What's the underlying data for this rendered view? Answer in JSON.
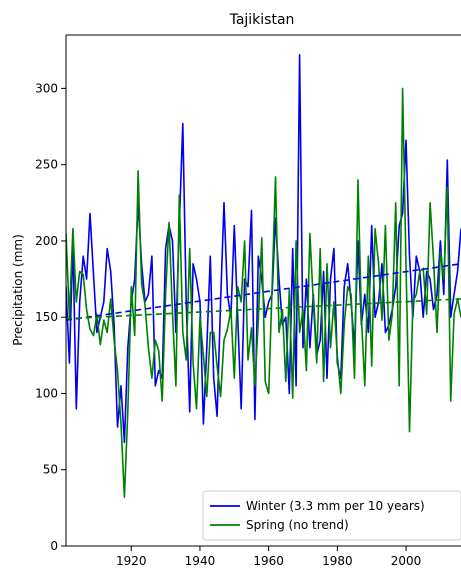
{
  "chart_data": {
    "type": "line",
    "title": "Tajikistan",
    "xlabel": "",
    "ylabel": "Precipitation (mm)",
    "xlim": [
      1901,
      2016
    ],
    "ylim": [
      0,
      335
    ],
    "x_ticks": [
      1920,
      1940,
      1960,
      1980,
      2000
    ],
    "y_ticks": [
      0,
      50,
      100,
      150,
      200,
      250,
      300
    ],
    "grid": false,
    "legend_position": "lower right",
    "years": [
      1901,
      1902,
      1903,
      1904,
      1905,
      1906,
      1907,
      1908,
      1909,
      1910,
      1911,
      1912,
      1913,
      1914,
      1915,
      1916,
      1917,
      1918,
      1919,
      1920,
      1921,
      1922,
      1923,
      1924,
      1925,
      1926,
      1927,
      1928,
      1929,
      1930,
      1931,
      1932,
      1933,
      1934,
      1935,
      1936,
      1937,
      1938,
      1939,
      1940,
      1941,
      1942,
      1943,
      1944,
      1945,
      1946,
      1947,
      1948,
      1949,
      1950,
      1951,
      1952,
      1953,
      1954,
      1955,
      1956,
      1957,
      1958,
      1959,
      1960,
      1961,
      1962,
      1963,
      1964,
      1965,
      1966,
      1967,
      1968,
      1969,
      1970,
      1971,
      1972,
      1973,
      1974,
      1975,
      1976,
      1977,
      1978,
      1979,
      1980,
      1981,
      1982,
      1983,
      1984,
      1985,
      1986,
      1987,
      1988,
      1989,
      1990,
      1991,
      1992,
      1993,
      1994,
      1995,
      1996,
      1997,
      1998,
      1999,
      2000,
      2001,
      2002,
      2003,
      2004,
      2005,
      2006,
      2007,
      2008,
      2009,
      2010,
      2011,
      2012,
      2013,
      2014,
      2015,
      2016
    ],
    "series": [
      {
        "name": "Winter (3.3 mm per 10 years)",
        "color": "#0000ee",
        "style": "solid",
        "values": [
          170,
          120,
          200,
          90,
          160,
          190,
          175,
          218,
          178,
          140,
          150,
          160,
          195,
          180,
          145,
          78,
          105,
          68,
          130,
          160,
          175,
          225,
          185,
          160,
          165,
          190,
          105,
          115,
          110,
          195,
          210,
          200,
          140,
          210,
          277,
          160,
          88,
          185,
          175,
          160,
          80,
          130,
          190,
          110,
          85,
          160,
          225,
          165,
          150,
          210,
          150,
          90,
          175,
          170,
          220,
          83,
          190,
          175,
          150,
          160,
          165,
          215,
          175,
          145,
          150,
          100,
          195,
          105,
          322,
          130,
          175,
          130,
          165,
          125,
          135,
          180,
          110,
          175,
          195,
          120,
          110,
          170,
          185,
          160,
          130,
          200,
          145,
          165,
          140,
          210,
          150,
          160,
          185,
          140,
          145,
          155,
          170,
          210,
          218,
          266,
          190,
          150,
          190,
          180,
          150,
          180,
          175,
          155,
          165,
          200,
          165,
          253,
          150,
          165,
          180,
          208
        ]
      },
      {
        "name": "Spring (no trend)",
        "color": "#008000",
        "style": "solid",
        "values": [
          205,
          150,
          208,
          160,
          180,
          178,
          155,
          142,
          138,
          152,
          132,
          148,
          140,
          162,
          135,
          115,
          80,
          32,
          88,
          170,
          138,
          246,
          172,
          158,
          130,
          110,
          135,
          128,
          95,
          165,
          212,
          153,
          105,
          230,
          140,
          122,
          195,
          120,
          90,
          150,
          125,
          98,
          140,
          140,
          118,
          98,
          135,
          142,
          155,
          110,
          170,
          160,
          200,
          122,
          143,
          105,
          148,
          202,
          108,
          100,
          170,
          242,
          140,
          155,
          108,
          168,
          97,
          200,
          140,
          155,
          115,
          205,
          160,
          120,
          195,
          108,
          185,
          130,
          160,
          125,
          100,
          145,
          170,
          165,
          110,
          240,
          150,
          105,
          190,
          118,
          208,
          185,
          148,
          210,
          135,
          152,
          225,
          105,
          300,
          185,
          75,
          160,
          165,
          180,
          182,
          152,
          225,
          188,
          140,
          193,
          175,
          235,
          95,
          152,
          162,
          150
        ]
      },
      {
        "name": "",
        "color": "#0000ee",
        "style": "dashed",
        "values_at_xlim": [
          148,
          185
        ]
      },
      {
        "name": "",
        "color": "#008000",
        "style": "dashed",
        "values_at_xlim": [
          149,
          162
        ]
      }
    ]
  }
}
